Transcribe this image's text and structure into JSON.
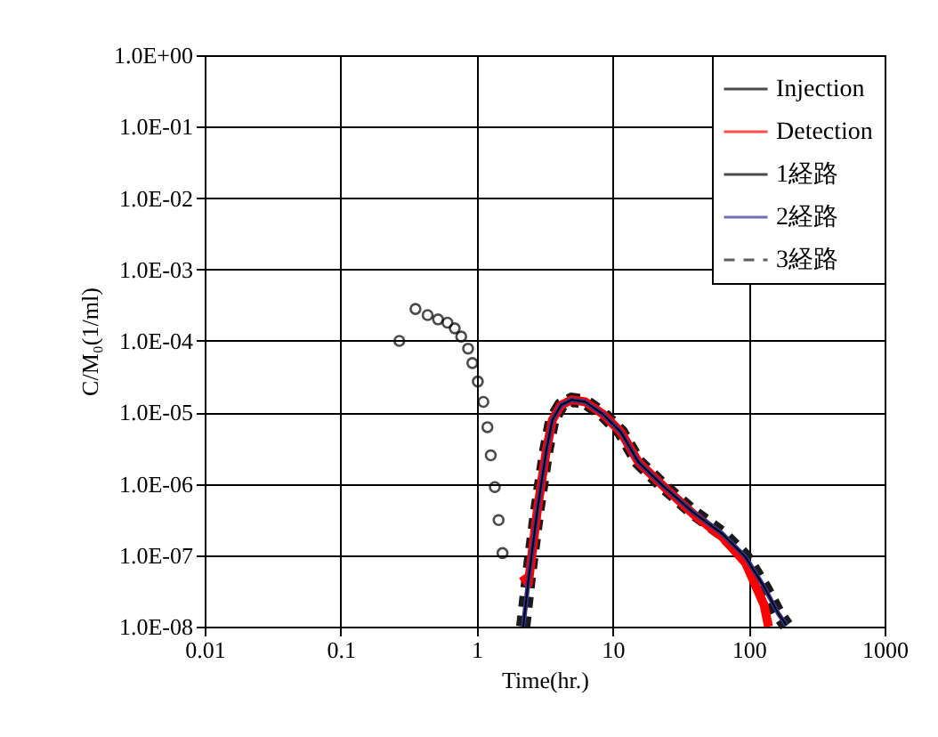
{
  "chart_data": {
    "type": "line",
    "xlabel": "Time(hr.)",
    "ylabel": "C/M₀(1/ml)",
    "log": "xy",
    "grid": true,
    "legend": "top right",
    "xlim": [
      0.01,
      1000
    ],
    "xticks": [
      0.01,
      0.1,
      1,
      10,
      100,
      1000
    ],
    "ylim": [
      1e-08,
      1
    ],
    "yticks": [
      {
        "value": 1e-08,
        "label": "1.0E-08"
      },
      {
        "value": 1e-07,
        "label": "1.0E-07"
      },
      {
        "value": 1e-06,
        "label": "1.0E-06"
      },
      {
        "value": 1e-05,
        "label": "1.0E-05"
      },
      {
        "value": 0.0001,
        "label": "1.0E-04"
      },
      {
        "value": 0.001,
        "label": "1.0E-03"
      },
      {
        "value": 0.01,
        "label": "1.0E-02"
      },
      {
        "value": 0.1,
        "label": "1.0E-01"
      },
      {
        "value": 1,
        "label": "1.0E+00"
      }
    ],
    "series": [
      {
        "name": "Injection",
        "type": "scatter",
        "marker": "circle",
        "color": "#000000",
        "x": [
          0.27,
          0.355,
          0.436,
          0.52,
          0.61,
          0.69,
          0.77,
          0.865,
          0.93,
          1.02,
          1.12,
          1.2,
          1.27,
          1.36,
          1.45,
          1.55
        ],
        "values": [
          0.0001,
          0.00028,
          0.00023,
          0.0002,
          0.00018,
          0.00015,
          0.000115,
          7.8e-05,
          4.9e-05,
          2.7e-05,
          1.4e-05,
          6.2e-06,
          2.5e-06,
          9e-07,
          3.1e-07,
          1.07e-07
        ]
      },
      {
        "name": "Detection",
        "line_style": "solid",
        "color": "#ff0000",
        "x": [
          2.18,
          2.4,
          2.8,
          3.26,
          3.6,
          4.17,
          5.0,
          6.3,
          8.5,
          11.5,
          15.5,
          23.4,
          39,
          64,
          95,
          130,
          140
        ],
        "values": [
          5.2e-08,
          4e-08,
          4.4e-07,
          3e-06,
          7.8e-06,
          1.26e-05,
          1.5e-05,
          1.4e-05,
          9.4e-06,
          5.3e-06,
          2e-06,
          9.4e-07,
          3.8e-07,
          1.8e-07,
          7.8e-08,
          2e-08,
          1e-08
        ]
      },
      {
        "name": "1経路",
        "line_style": "solid",
        "color": "#000000",
        "x": [
          2.2,
          2.4,
          2.8,
          3.26,
          3.6,
          4.17,
          5.0,
          6.3,
          8.5,
          11.5,
          15.5,
          23.4,
          39,
          64,
          95,
          130,
          166,
          190
        ],
        "values": [
          1e-08,
          4.4e-08,
          4.4e-07,
          3e-06,
          7.8e-06,
          1.26e-05,
          1.5e-05,
          1.4e-05,
          9.4e-06,
          5.3e-06,
          2e-06,
          9.4e-07,
          4e-07,
          2e-07,
          9.4e-08,
          3.6e-08,
          1.5e-08,
          1.04e-08
        ]
      },
      {
        "name": "2経路",
        "line_style": "solid",
        "color": "#333399",
        "x": [
          2.2,
          2.4,
          2.8,
          3.26,
          3.6,
          4.17,
          5.0,
          6.3,
          8.5,
          11.5,
          15.5,
          23.4,
          39,
          64,
          95,
          130,
          166,
          190
        ],
        "values": [
          1e-08,
          4.4e-08,
          4.4e-07,
          3e-06,
          7.8e-06,
          1.26e-05,
          1.5e-05,
          1.4e-05,
          9.4e-06,
          5.3e-06,
          2e-06,
          9.4e-07,
          4e-07,
          2e-07,
          9.4e-08,
          3.6e-08,
          1.5e-08,
          1.04e-08
        ]
      },
      {
        "name": "3経路",
        "line_style": "dashed",
        "color": "#1a1a1a",
        "x": [
          2.2,
          2.4,
          2.8,
          3.26,
          3.6,
          4.17,
          5.0,
          6.3,
          8.5,
          11.5,
          15.5,
          23.4,
          39,
          64,
          95,
          130,
          166,
          190
        ],
        "values": [
          1e-08,
          4.4e-08,
          4.4e-07,
          3e-06,
          7.8e-06,
          1.26e-05,
          1.5e-05,
          1.4e-05,
          9.4e-06,
          5.3e-06,
          2e-06,
          9.4e-07,
          4e-07,
          2e-07,
          9.4e-08,
          3.6e-08,
          1.5e-08,
          1.04e-08
        ]
      }
    ]
  }
}
